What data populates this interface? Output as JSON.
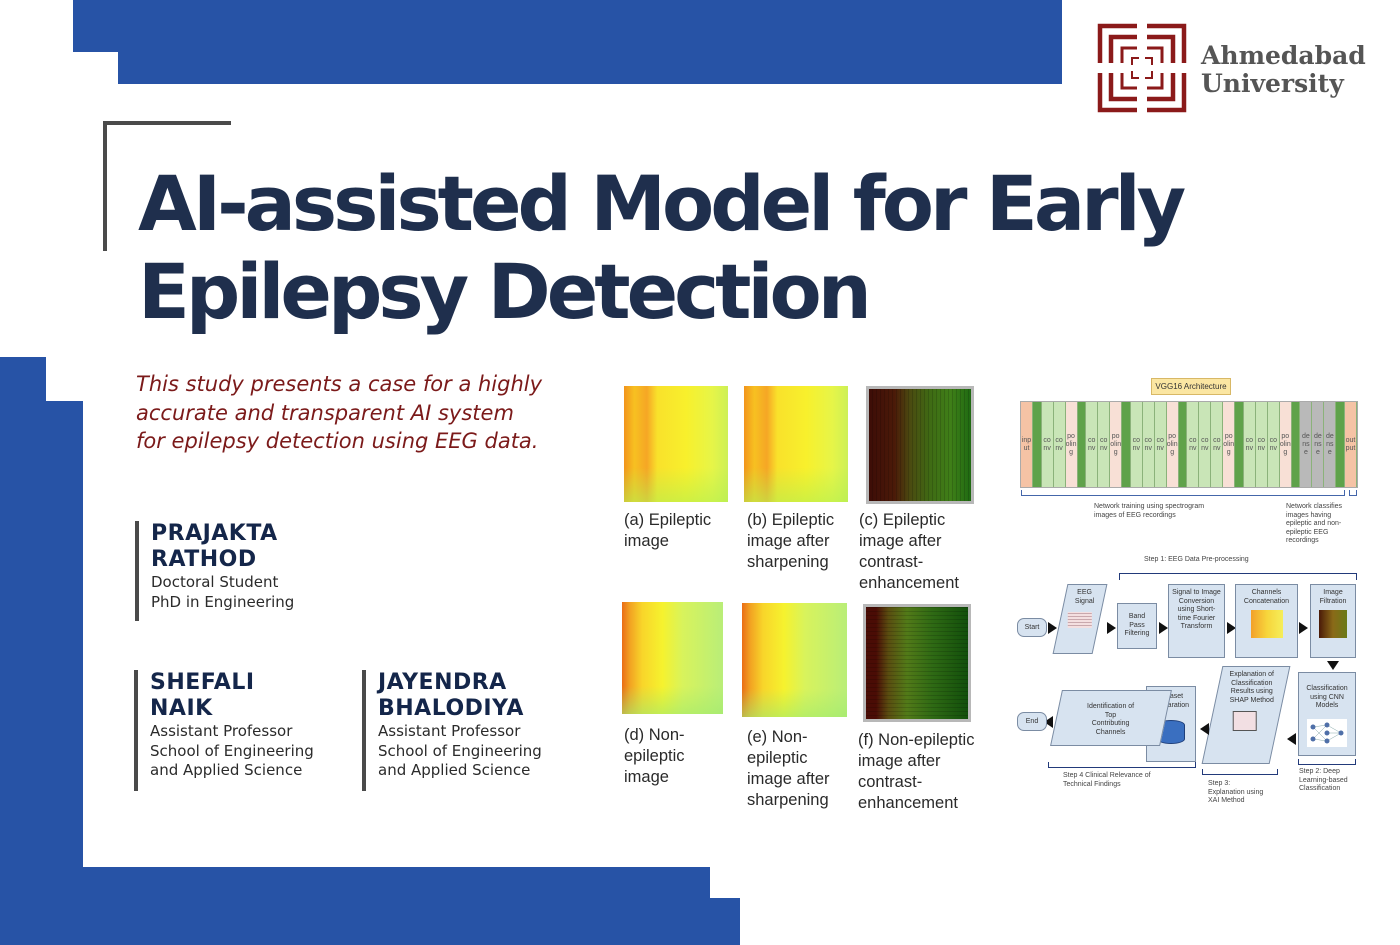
{
  "theme": {
    "brand_blue": "#2753a6",
    "title_navy": "#1f2f4d",
    "tagline_maroon": "#7b1a1a",
    "logo_maroon": "#8b1a1a"
  },
  "header": {
    "logo_line1": "Ahmedabad",
    "logo_line2": "University"
  },
  "title": {
    "line1": "AI-assisted Model for Early",
    "line2": "Epilepsy Detection"
  },
  "tagline": {
    "line1": "This study presents a case for a highly",
    "line2": "accurate and transparent AI system",
    "line3": "for epilepsy detection using EEG data."
  },
  "authors": [
    {
      "first": "PRAJAKTA",
      "last": "RATHOD",
      "role1": "Doctoral Student",
      "role2": "PhD in Engineering",
      "role3": ""
    },
    {
      "first": "SHEFALI",
      "last": "NAIK",
      "role1": "Assistant Professor",
      "role2": "School of Engineering",
      "role3": "and Applied Science"
    },
    {
      "first": "JAYENDRA",
      "last": "BHALODIYA",
      "role1": "Assistant Professor",
      "role2": "School of Engineering",
      "role3": "and Applied Science"
    }
  ],
  "figures": {
    "a": {
      "l1": "(a) Epileptic",
      "l2": "image",
      "l3": "",
      "l4": ""
    },
    "b": {
      "l1": "(b) Epileptic",
      "l2": "image after",
      "l3": "sharpening",
      "l4": ""
    },
    "c": {
      "l1": "(c) Epileptic",
      "l2": "image after",
      "l3": "contrast-",
      "l4": "enhancement"
    },
    "d": {
      "l1": "(d) Non-",
      "l2": "epileptic",
      "l3": "image",
      "l4": ""
    },
    "e": {
      "l1": "(e) Non-",
      "l2": "epileptic",
      "l3": "image after",
      "l4": "sharpening"
    },
    "f": {
      "l1": "(f) Non-epileptic",
      "l2": "image after",
      "l3": "contrast-",
      "l4": "enhancement"
    }
  },
  "vgg": {
    "title": "VGG16 Architecture",
    "blocks": [
      "input",
      "",
      "conv",
      "conv",
      "pooling",
      "",
      "conv",
      "conv",
      "pooling",
      "",
      "conv",
      "conv",
      "conv",
      "pooling",
      "",
      "conv",
      "conv",
      "conv",
      "pooling",
      "",
      "conv",
      "conv",
      "conv",
      "pooling",
      "",
      "dense",
      "dense",
      "dense",
      "",
      "output"
    ],
    "note_training": "Network training using spectrogram images of EEG recordings",
    "note_classify": "Network classifies images having epileptic and non-epileptic EEG recordings"
  },
  "flowchart": {
    "step1": "Step 1: EEG Data Pre-processing",
    "start": "Start",
    "end": "End",
    "eeg_signal": "EEG Signal",
    "band_pass": "Band Pass Filtering",
    "signal_to_image": "Signal to Image Conversion using Short-time Fourier Transform",
    "channels_concat": "Channels Concatenation",
    "image_filtration": "Image Filtration",
    "classification": "Classification using CNN Models",
    "explanation": "Explanation of Classification Results using SHAP Method",
    "dataset_prep": "Dataset Preparation",
    "identification": "Identification of Top Contributing Channels",
    "step2": "Step 2: Deep Learning-based Classification",
    "step3": "Step 3: Explanation using XAI Method",
    "step4": "Step 4 Clinical Relevance of Technical Findings"
  }
}
